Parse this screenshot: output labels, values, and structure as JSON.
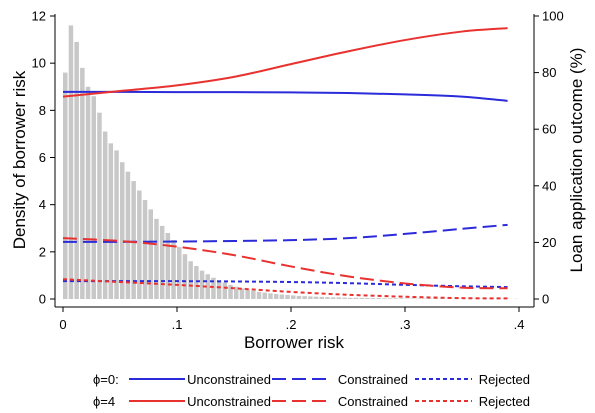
{
  "chart_data": {
    "type": "bar+line",
    "title": "",
    "xlabel": "Borrower risk",
    "ylabel_left": "Density of borrower risk",
    "ylabel_right": "Loan application outcome (%)",
    "xlim": [
      0,
      0.4
    ],
    "ylim_left": [
      0,
      12
    ],
    "ylim_right": [
      0,
      100
    ],
    "x_ticks": [
      0,
      0.1,
      0.2,
      0.3,
      0.4
    ],
    "x_tick_labels": [
      "0",
      ".1",
      ".2",
      ".3",
      ".4"
    ],
    "y_left_ticks": [
      0,
      2,
      4,
      6,
      8,
      10,
      12
    ],
    "y_left_tick_labels": [
      "0",
      "2",
      "4",
      "6",
      "8",
      "10",
      "12"
    ],
    "y_right_ticks": [
      0,
      20,
      40,
      60,
      80,
      100
    ],
    "y_right_tick_labels": [
      "0",
      "20",
      "40",
      "60",
      "80",
      "100"
    ],
    "grid": false,
    "legend_position": "bottom",
    "histogram": {
      "bin_width": 0.005,
      "bin_starts": [
        0.0,
        0.005,
        0.01,
        0.015,
        0.02,
        0.025,
        0.03,
        0.035,
        0.04,
        0.045,
        0.05,
        0.055,
        0.06,
        0.065,
        0.07,
        0.075,
        0.08,
        0.085,
        0.09,
        0.095,
        0.1,
        0.105,
        0.11,
        0.115,
        0.12,
        0.125,
        0.13,
        0.135,
        0.14,
        0.145,
        0.15,
        0.155,
        0.16,
        0.165,
        0.17,
        0.175,
        0.18,
        0.185,
        0.19,
        0.195,
        0.2,
        0.205,
        0.21,
        0.215,
        0.22,
        0.225,
        0.23,
        0.235,
        0.24,
        0.245,
        0.25,
        0.255,
        0.26,
        0.265,
        0.27,
        0.275,
        0.28,
        0.285,
        0.29,
        0.295,
        0.3,
        0.305,
        0.31,
        0.315,
        0.32,
        0.325,
        0.33,
        0.335,
        0.34,
        0.345,
        0.35,
        0.355,
        0.36,
        0.365,
        0.37,
        0.375,
        0.38,
        0.385,
        0.39,
        0.395
      ],
      "density": [
        9.6,
        11.6,
        10.9,
        9.8,
        9.0,
        8.6,
        7.9,
        7.1,
        6.6,
        6.3,
        5.8,
        5.4,
        5.0,
        4.6,
        4.2,
        3.8,
        3.4,
        3.1,
        2.8,
        2.5,
        2.2,
        1.9,
        1.6,
        1.4,
        1.2,
        1.05,
        0.9,
        0.8,
        0.7,
        0.6,
        0.52,
        0.45,
        0.4,
        0.35,
        0.3,
        0.27,
        0.24,
        0.21,
        0.19,
        0.17,
        0.15,
        0.13,
        0.12,
        0.11,
        0.1,
        0.09,
        0.08,
        0.07,
        0.07,
        0.06,
        0.05,
        0.05,
        0.05,
        0.04,
        0.04,
        0.04,
        0.03,
        0.03,
        0.03,
        0.03,
        0.02,
        0.02,
        0.02,
        0.02,
        0.02,
        0.02,
        0.01,
        0.01,
        0.01,
        0.01,
        0.01,
        0.01,
        0.01,
        0.01,
        0.01,
        0.01,
        0.01,
        0.01,
        0.01,
        0.01
      ],
      "color": "#c8c8c8"
    },
    "series": [
      {
        "name": "Unconstrained",
        "group": "ϕ=0:",
        "color": "#2b2bd9",
        "dash": "solid",
        "x": [
          0,
          0.05,
          0.1,
          0.15,
          0.2,
          0.25,
          0.3,
          0.35,
          0.39
        ],
        "y": [
          73.2,
          73.2,
          73.1,
          73.1,
          73.0,
          72.8,
          72.3,
          71.5,
          70.0
        ]
      },
      {
        "name": "Constrained",
        "group": "ϕ=0:",
        "color": "#2b2bd9",
        "dash": "long",
        "x": [
          0,
          0.05,
          0.1,
          0.15,
          0.2,
          0.25,
          0.3,
          0.35,
          0.39
        ],
        "y": [
          20.2,
          20.2,
          20.3,
          20.5,
          20.8,
          21.5,
          23.0,
          24.8,
          26.2
        ]
      },
      {
        "name": "Rejected",
        "group": "ϕ=0:",
        "color": "#2b2bd9",
        "dash": "short",
        "x": [
          0,
          0.05,
          0.1,
          0.15,
          0.2,
          0.25,
          0.3,
          0.35,
          0.39
        ],
        "y": [
          6.3,
          6.3,
          6.3,
          6.2,
          6.0,
          5.6,
          5.0,
          4.5,
          4.2
        ]
      },
      {
        "name": "Unconstrained",
        "group": "ϕ=4",
        "color": "#e8322f",
        "dash": "solid",
        "x": [
          0,
          0.05,
          0.1,
          0.15,
          0.2,
          0.25,
          0.3,
          0.35,
          0.39
        ],
        "y": [
          71.5,
          73.5,
          75.5,
          78.5,
          83.0,
          87.5,
          91.5,
          94.5,
          95.7
        ]
      },
      {
        "name": "Constrained",
        "group": "ϕ=4",
        "color": "#e8322f",
        "dash": "long",
        "x": [
          0,
          0.05,
          0.1,
          0.15,
          0.2,
          0.25,
          0.3,
          0.35,
          0.39
        ],
        "y": [
          21.5,
          20.5,
          18.5,
          15.5,
          11.5,
          8.0,
          5.5,
          4.0,
          3.8
        ]
      },
      {
        "name": "Rejected",
        "group": "ϕ=4",
        "color": "#e8322f",
        "dash": "short",
        "x": [
          0,
          0.05,
          0.1,
          0.15,
          0.2,
          0.25,
          0.3,
          0.35,
          0.39
        ],
        "y": [
          7.0,
          6.0,
          5.0,
          3.8,
          2.5,
          1.5,
          0.8,
          0.3,
          0.2
        ]
      }
    ]
  },
  "legend": {
    "row0_label": "ϕ=0:",
    "row1_label": "ϕ=4",
    "entries": [
      {
        "label": "Unconstrained",
        "color": "#2b2bd9",
        "dash": "solid"
      },
      {
        "label": "Constrained",
        "color": "#2b2bd9",
        "dash": "long"
      },
      {
        "label": "Rejected",
        "color": "#2b2bd9",
        "dash": "short"
      },
      {
        "label": "Unconstrained",
        "color": "#e8322f",
        "dash": "solid"
      },
      {
        "label": "Constrained",
        "color": "#e8322f",
        "dash": "long"
      },
      {
        "label": "Rejected",
        "color": "#e8322f",
        "dash": "short"
      }
    ]
  }
}
